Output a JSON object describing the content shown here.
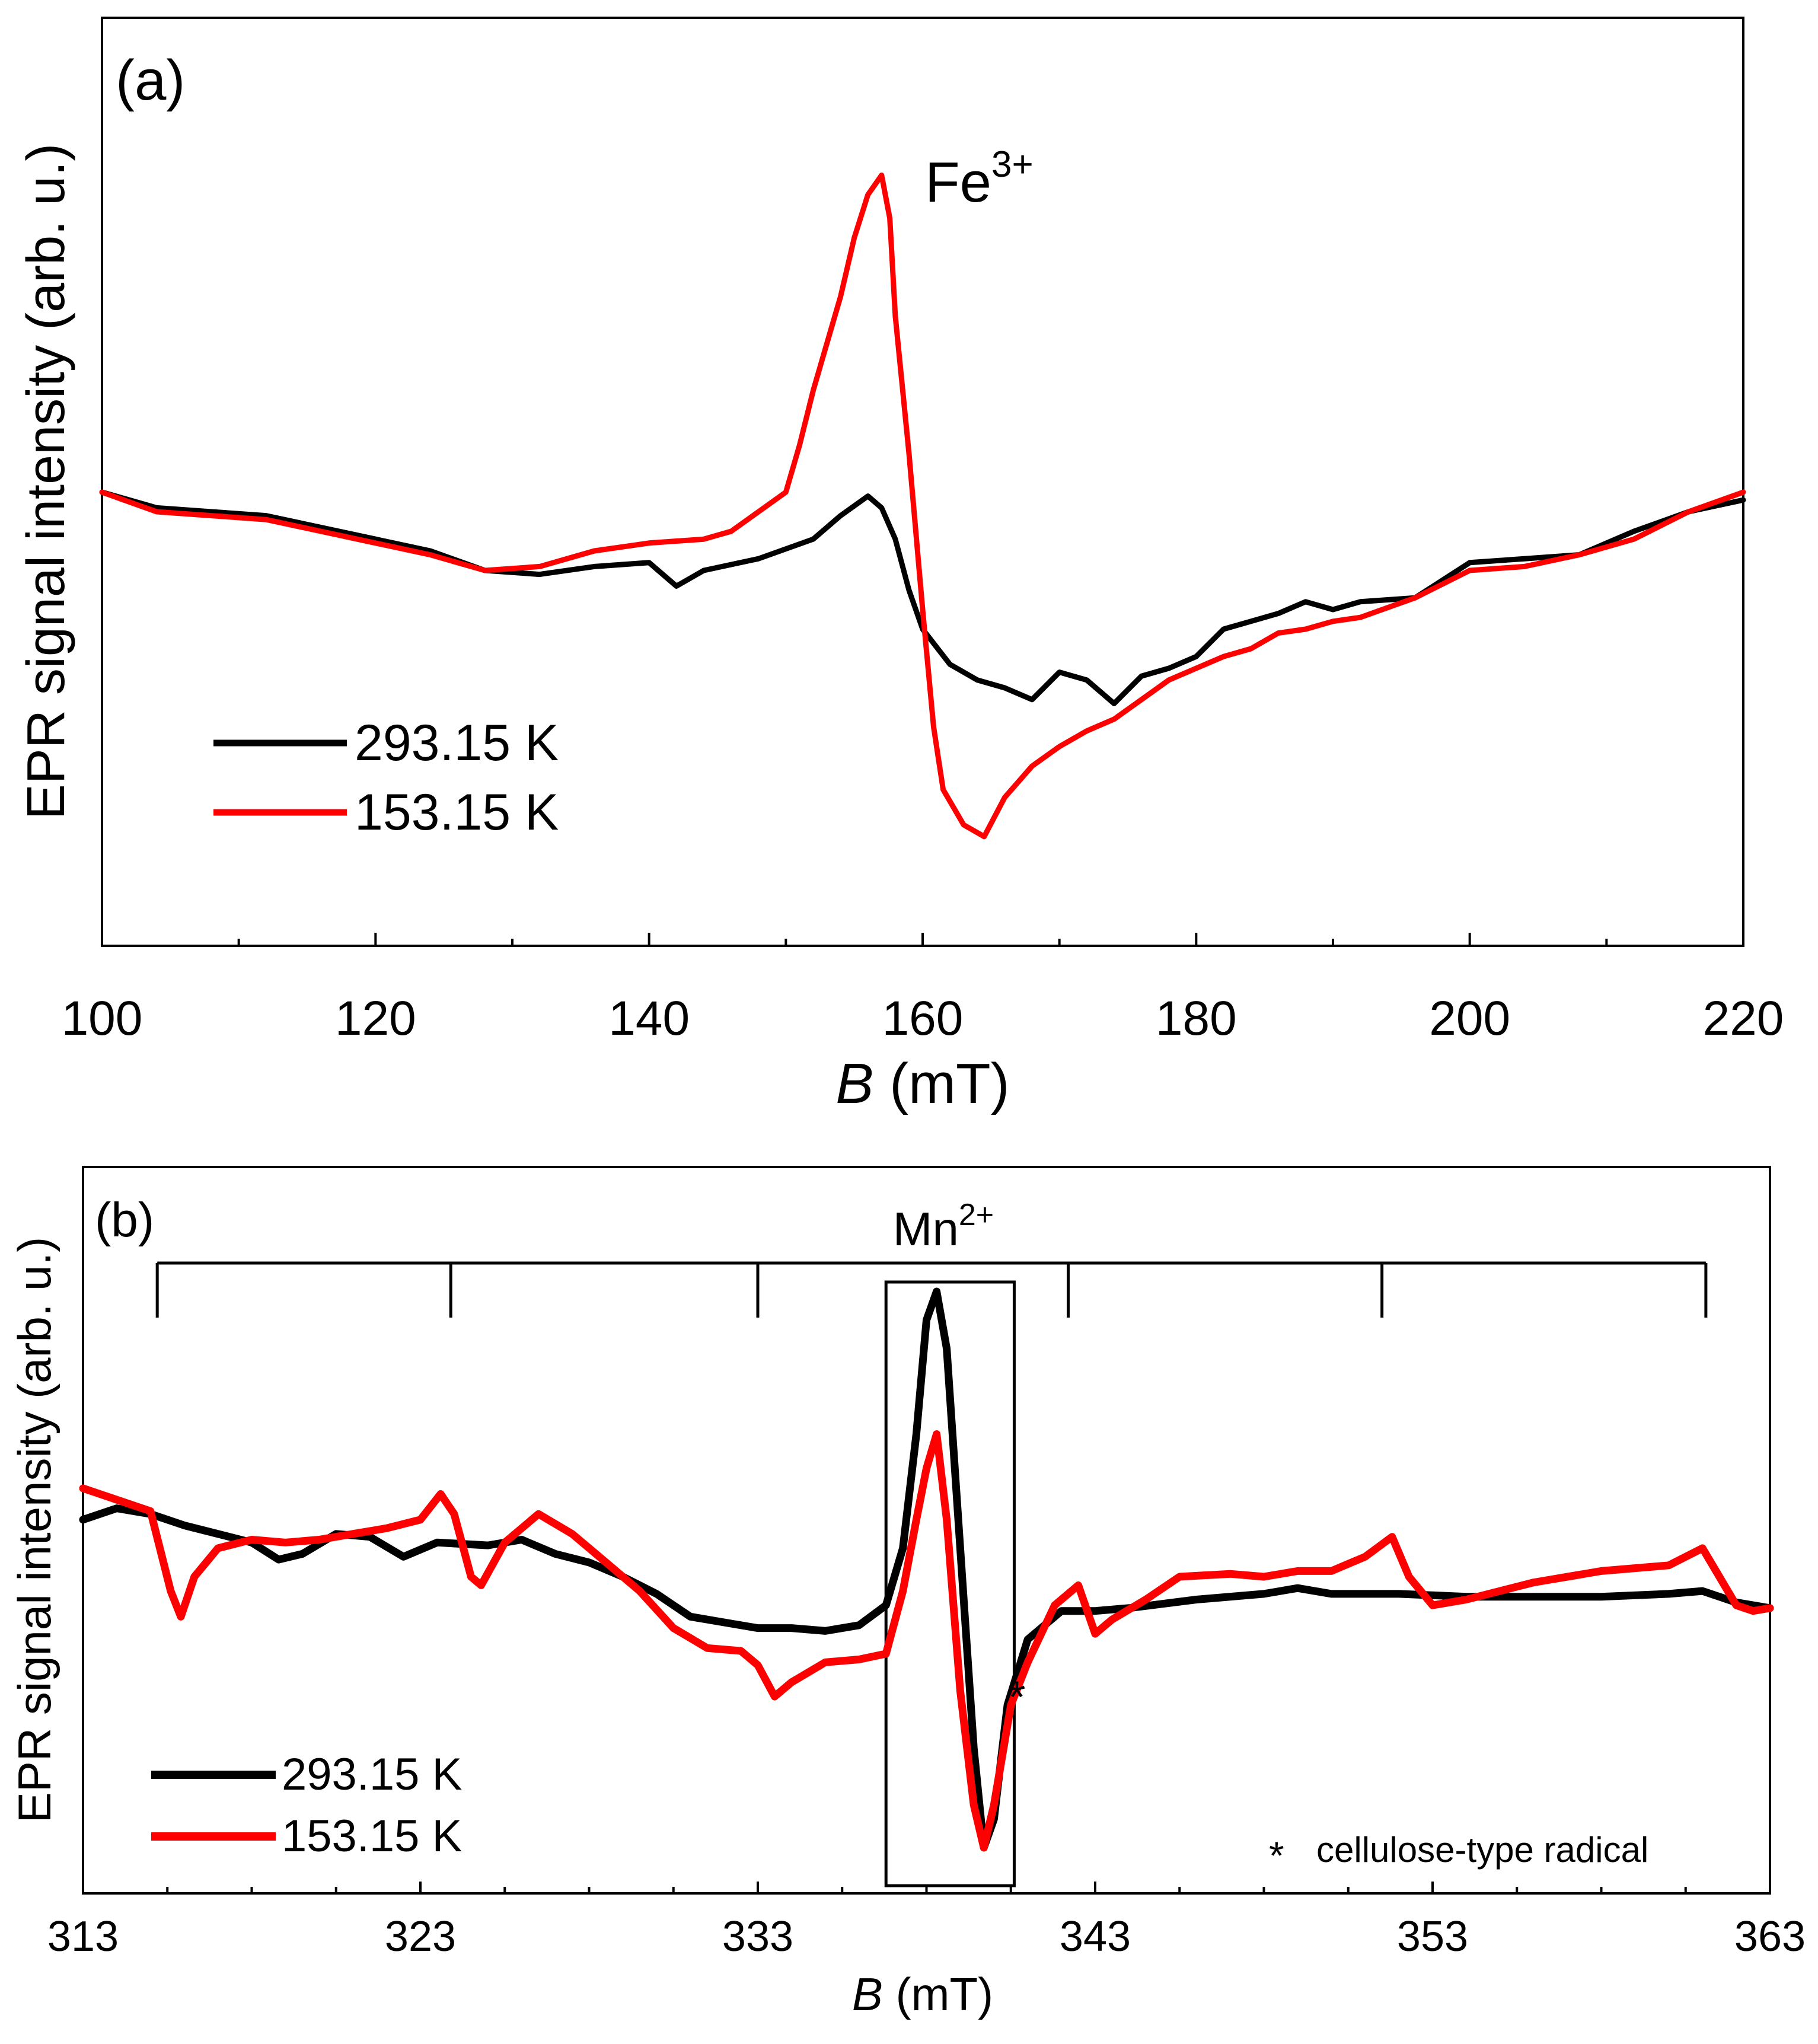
{
  "chart_data": [
    {
      "panel_label": "(a)",
      "type": "line",
      "ylabel": "EPR signal intensity (arb. u.)",
      "xlabel_italic": "B",
      "xlabel_rest": " (mT)",
      "xlim": [
        100,
        220
      ],
      "ylim": [
        -1.0,
        1.0
      ],
      "xticks": [
        "100",
        "120",
        "140",
        "160",
        "180",
        "200",
        "220"
      ],
      "annotation": {
        "base": "Fe",
        "sup": "3+",
        "x": 160,
        "y": 0.84
      },
      "legend": {
        "placement": "lower-left"
      },
      "series": [
        {
          "name": "293.15 K",
          "color": "#000000",
          "points": [
            [
              100,
              0.0
            ],
            [
              104,
              -0.04
            ],
            [
              108,
              -0.05
            ],
            [
              112,
              -0.06
            ],
            [
              116,
              -0.09
            ],
            [
              120,
              -0.12
            ],
            [
              124,
              -0.15
            ],
            [
              128,
              -0.2
            ],
            [
              132,
              -0.21
            ],
            [
              136,
              -0.19
            ],
            [
              140,
              -0.18
            ],
            [
              142,
              -0.24
            ],
            [
              144,
              -0.2
            ],
            [
              148,
              -0.17
            ],
            [
              152,
              -0.12
            ],
            [
              154,
              -0.06
            ],
            [
              156,
              -0.01
            ],
            [
              157,
              -0.04
            ],
            [
              158,
              -0.12
            ],
            [
              159,
              -0.25
            ],
            [
              160,
              -0.35
            ],
            [
              162,
              -0.44
            ],
            [
              164,
              -0.48
            ],
            [
              166,
              -0.5
            ],
            [
              168,
              -0.53
            ],
            [
              170,
              -0.46
            ],
            [
              172,
              -0.48
            ],
            [
              174,
              -0.54
            ],
            [
              176,
              -0.47
            ],
            [
              178,
              -0.45
            ],
            [
              180,
              -0.42
            ],
            [
              182,
              -0.35
            ],
            [
              184,
              -0.33
            ],
            [
              186,
              -0.31
            ],
            [
              188,
              -0.28
            ],
            [
              190,
              -0.3
            ],
            [
              192,
              -0.28
            ],
            [
              196,
              -0.27
            ],
            [
              200,
              -0.18
            ],
            [
              204,
              -0.17
            ],
            [
              208,
              -0.16
            ],
            [
              212,
              -0.1
            ],
            [
              216,
              -0.05
            ],
            [
              220,
              -0.02
            ]
          ]
        },
        {
          "name": "153.15 K",
          "color": "#ff0000",
          "points": [
            [
              100,
              0.0
            ],
            [
              104,
              -0.05
            ],
            [
              108,
              -0.06
            ],
            [
              112,
              -0.07
            ],
            [
              116,
              -0.1
            ],
            [
              120,
              -0.13
            ],
            [
              124,
              -0.16
            ],
            [
              128,
              -0.2
            ],
            [
              132,
              -0.19
            ],
            [
              136,
              -0.15
            ],
            [
              140,
              -0.13
            ],
            [
              144,
              -0.12
            ],
            [
              146,
              -0.1
            ],
            [
              148,
              -0.05
            ],
            [
              150,
              0.0
            ],
            [
              151,
              0.12
            ],
            [
              152,
              0.26
            ],
            [
              153,
              0.38
            ],
            [
              154,
              0.5
            ],
            [
              155,
              0.65
            ],
            [
              156,
              0.76
            ],
            [
              157,
              0.81
            ],
            [
              157.6,
              0.7
            ],
            [
              158,
              0.45
            ],
            [
              159,
              0.1
            ],
            [
              160,
              -0.3
            ],
            [
              160.8,
              -0.6
            ],
            [
              161.5,
              -0.76
            ],
            [
              163,
              -0.85
            ],
            [
              164.5,
              -0.88
            ],
            [
              166,
              -0.78
            ],
            [
              168,
              -0.7
            ],
            [
              170,
              -0.65
            ],
            [
              172,
              -0.61
            ],
            [
              174,
              -0.58
            ],
            [
              176,
              -0.53
            ],
            [
              178,
              -0.48
            ],
            [
              180,
              -0.45
            ],
            [
              182,
              -0.42
            ],
            [
              184,
              -0.4
            ],
            [
              186,
              -0.36
            ],
            [
              188,
              -0.35
            ],
            [
              190,
              -0.33
            ],
            [
              192,
              -0.32
            ],
            [
              196,
              -0.27
            ],
            [
              200,
              -0.2
            ],
            [
              204,
              -0.19
            ],
            [
              208,
              -0.16
            ],
            [
              212,
              -0.12
            ],
            [
              216,
              -0.05
            ],
            [
              220,
              0.0
            ]
          ]
        }
      ]
    },
    {
      "panel_label": "(b)",
      "type": "line",
      "ylabel": "EPR signal intensity (arb. u.)",
      "xlabel_italic": "B",
      "xlabel_rest": " (mT)",
      "xlim": [
        313,
        363
      ],
      "ylim": [
        -1.0,
        1.0
      ],
      "xticks": [
        "313",
        "323",
        "333",
        "343",
        "353",
        "363"
      ],
      "annotation": {
        "base": "Mn",
        "sup": "2+",
        "x": 338.5,
        "y": 1.07
      },
      "hyperfine_markers": [
        315.2,
        323.9,
        333.0,
        342.2,
        351.5,
        361.1
      ],
      "boxed_region": [
        336.8,
        340.6
      ],
      "asterisk_mark": "*",
      "footnote": "cellulose-type radical",
      "legend": {
        "placement": "lower-left"
      },
      "series": [
        {
          "name": "293.15 K",
          "color": "#000000",
          "points": [
            [
              313,
              0.2
            ],
            [
              314,
              0.24
            ],
            [
              315,
              0.22
            ],
            [
              316,
              0.18
            ],
            [
              317,
              0.15
            ],
            [
              318,
              0.12
            ],
            [
              318.8,
              0.06
            ],
            [
              319.5,
              0.08
            ],
            [
              320.5,
              0.15
            ],
            [
              321.5,
              0.14
            ],
            [
              322.5,
              0.07
            ],
            [
              323.5,
              0.12
            ],
            [
              325,
              0.11
            ],
            [
              326,
              0.13
            ],
            [
              327,
              0.08
            ],
            [
              328,
              0.05
            ],
            [
              329,
              0.0
            ],
            [
              330,
              -0.06
            ],
            [
              331,
              -0.14
            ],
            [
              332,
              -0.16
            ],
            [
              333,
              -0.18
            ],
            [
              334,
              -0.18
            ],
            [
              335,
              -0.19
            ],
            [
              336,
              -0.17
            ],
            [
              336.8,
              -0.1
            ],
            [
              337.3,
              0.1
            ],
            [
              337.7,
              0.5
            ],
            [
              338,
              0.9
            ],
            [
              338.3,
              1.0
            ],
            [
              338.6,
              0.8
            ],
            [
              339,
              0.1
            ],
            [
              339.4,
              -0.6
            ],
            [
              339.7,
              -0.95
            ],
            [
              340,
              -0.85
            ],
            [
              340.4,
              -0.45
            ],
            [
              341,
              -0.22
            ],
            [
              342,
              -0.12
            ],
            [
              343,
              -0.12
            ],
            [
              344,
              -0.11
            ],
            [
              346,
              -0.08
            ],
            [
              348,
              -0.06
            ],
            [
              349,
              -0.04
            ],
            [
              350,
              -0.06
            ],
            [
              352,
              -0.06
            ],
            [
              354,
              -0.07
            ],
            [
              356,
              -0.07
            ],
            [
              358,
              -0.07
            ],
            [
              360,
              -0.06
            ],
            [
              361,
              -0.05
            ],
            [
              362,
              -0.09
            ],
            [
              363,
              -0.11
            ]
          ]
        },
        {
          "name": "153.15 K",
          "color": "#ff0000",
          "points": [
            [
              313,
              0.31
            ],
            [
              314,
              0.27
            ],
            [
              315,
              0.23
            ],
            [
              315.6,
              -0.05
            ],
            [
              315.9,
              -0.14
            ],
            [
              316.3,
              0.0
            ],
            [
              317,
              0.1
            ],
            [
              318,
              0.13
            ],
            [
              319,
              0.12
            ],
            [
              320,
              0.13
            ],
            [
              321,
              0.15
            ],
            [
              322,
              0.17
            ],
            [
              323,
              0.2
            ],
            [
              323.6,
              0.29
            ],
            [
              324,
              0.22
            ],
            [
              324.5,
              0.0
            ],
            [
              324.8,
              -0.03
            ],
            [
              325.5,
              0.12
            ],
            [
              326.5,
              0.22
            ],
            [
              327.5,
              0.15
            ],
            [
              328.5,
              0.05
            ],
            [
              329.5,
              -0.05
            ],
            [
              330.5,
              -0.18
            ],
            [
              331.5,
              -0.25
            ],
            [
              332.5,
              -0.26
            ],
            [
              333,
              -0.31
            ],
            [
              333.5,
              -0.42
            ],
            [
              334,
              -0.37
            ],
            [
              335,
              -0.3
            ],
            [
              336,
              -0.29
            ],
            [
              336.8,
              -0.27
            ],
            [
              337.3,
              -0.05
            ],
            [
              337.7,
              0.2
            ],
            [
              338,
              0.38
            ],
            [
              338.3,
              0.5
            ],
            [
              338.6,
              0.2
            ],
            [
              339,
              -0.4
            ],
            [
              339.4,
              -0.8
            ],
            [
              339.7,
              -0.95
            ],
            [
              340,
              -0.8
            ],
            [
              340.5,
              -0.45
            ],
            [
              341,
              -0.3
            ],
            [
              341.8,
              -0.1
            ],
            [
              342.5,
              -0.03
            ],
            [
              343,
              -0.2
            ],
            [
              343.5,
              -0.15
            ],
            [
              344.5,
              -0.08
            ],
            [
              345.5,
              0.0
            ],
            [
              347,
              0.01
            ],
            [
              348,
              0.0
            ],
            [
              349,
              0.02
            ],
            [
              350,
              0.02
            ],
            [
              351,
              0.07
            ],
            [
              351.8,
              0.14
            ],
            [
              352.3,
              0.0
            ],
            [
              353,
              -0.1
            ],
            [
              354,
              -0.08
            ],
            [
              356,
              -0.02
            ],
            [
              358,
              0.02
            ],
            [
              360,
              0.04
            ],
            [
              361,
              0.1
            ],
            [
              361.5,
              0.0
            ],
            [
              362,
              -0.1
            ],
            [
              362.5,
              -0.12
            ],
            [
              363,
              -0.11
            ]
          ]
        }
      ]
    }
  ],
  "legend_labels": [
    "293.15 K",
    "153.15 K"
  ]
}
